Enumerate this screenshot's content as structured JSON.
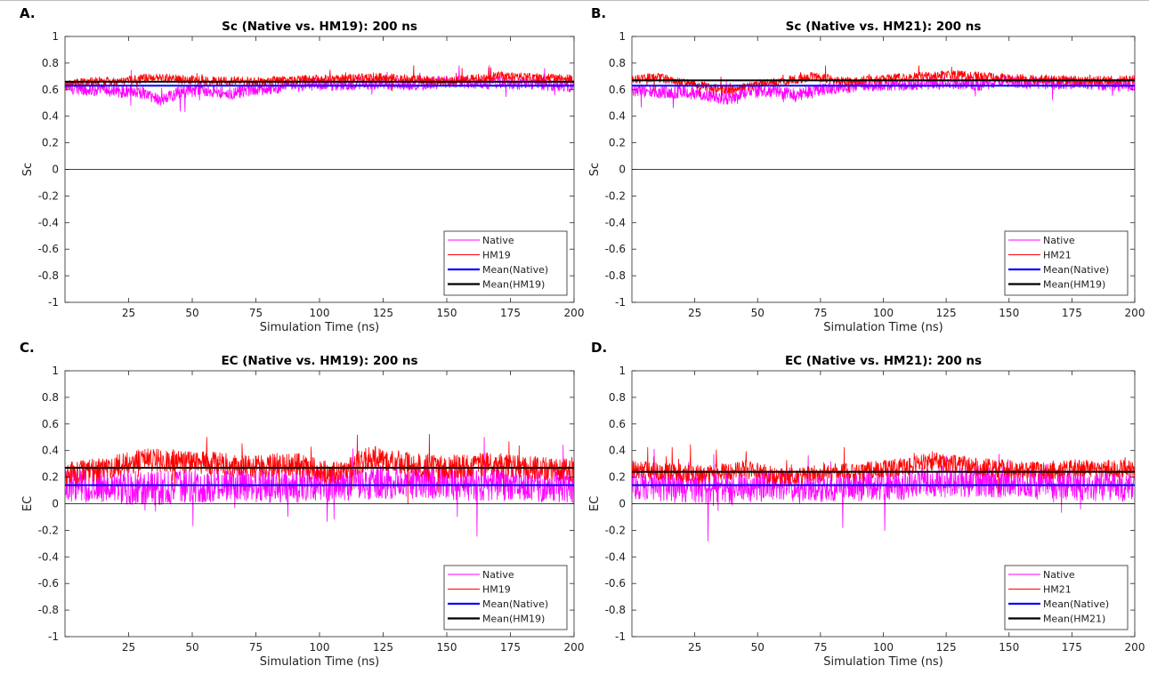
{
  "chart_data": [
    {
      "panel": "A.",
      "type": "line",
      "title": "Sc (Native vs. HM19): 200 ns",
      "xlabel": "Simulation Time (ns)",
      "ylabel": "Sc",
      "xlim": [
        0,
        200
      ],
      "ylim": [
        -1,
        1
      ],
      "xticks": [
        25,
        50,
        75,
        100,
        125,
        150,
        175,
        200
      ],
      "yticks": [
        -1,
        -0.8,
        -0.6,
        -0.4,
        -0.2,
        0,
        0.2,
        0.4,
        0.6,
        0.8,
        1
      ],
      "grid": false,
      "legend_position": "bottom-right",
      "zero_line": true,
      "series": [
        {
          "name": "Native",
          "color": "#ff00ff",
          "kind": "trace",
          "points": [
            [
              0,
              0.62
            ],
            [
              10,
              0.6
            ],
            [
              20,
              0.59
            ],
            [
              30,
              0.58
            ],
            [
              38,
              0.52
            ],
            [
              45,
              0.58
            ],
            [
              55,
              0.6
            ],
            [
              65,
              0.57
            ],
            [
              75,
              0.6
            ],
            [
              90,
              0.63
            ],
            [
              100,
              0.64
            ],
            [
              110,
              0.64
            ],
            [
              125,
              0.65
            ],
            [
              140,
              0.64
            ],
            [
              150,
              0.66
            ],
            [
              160,
              0.65
            ],
            [
              175,
              0.65
            ],
            [
              190,
              0.64
            ],
            [
              200,
              0.63
            ]
          ],
          "spread": 0.05
        },
        {
          "name": "HM19",
          "color": "#ff0000",
          "kind": "trace",
          "points": [
            [
              0,
              0.64
            ],
            [
              10,
              0.66
            ],
            [
              20,
              0.66
            ],
            [
              35,
              0.69
            ],
            [
              50,
              0.67
            ],
            [
              75,
              0.66
            ],
            [
              100,
              0.68
            ],
            [
              125,
              0.69
            ],
            [
              150,
              0.66
            ],
            [
              170,
              0.7
            ],
            [
              185,
              0.69
            ],
            [
              200,
              0.68
            ]
          ],
          "spread": 0.035
        },
        {
          "name": "Mean(Native)",
          "color": "#0000ff",
          "kind": "mean",
          "value": 0.63
        },
        {
          "name": "Mean(HM19)",
          "color": "#000000",
          "kind": "mean",
          "value": 0.66
        }
      ]
    },
    {
      "panel": "B.",
      "type": "line",
      "title": "Sc (Native vs. HM21): 200 ns",
      "xlabel": "Simulation Time (ns)",
      "ylabel": "Sc",
      "xlim": [
        0,
        200
      ],
      "ylim": [
        -1,
        1
      ],
      "xticks": [
        25,
        50,
        75,
        100,
        125,
        150,
        175,
        200
      ],
      "yticks": [
        -1,
        -0.8,
        -0.6,
        -0.4,
        -0.2,
        0,
        0.2,
        0.4,
        0.6,
        0.8,
        1
      ],
      "grid": false,
      "legend_position": "bottom-right",
      "zero_line": true,
      "series": [
        {
          "name": "Native",
          "color": "#ff00ff",
          "kind": "trace",
          "points": [
            [
              0,
              0.6
            ],
            [
              10,
              0.58
            ],
            [
              20,
              0.58
            ],
            [
              30,
              0.56
            ],
            [
              38,
              0.53
            ],
            [
              45,
              0.58
            ],
            [
              55,
              0.59
            ],
            [
              65,
              0.56
            ],
            [
              75,
              0.6
            ],
            [
              90,
              0.63
            ],
            [
              100,
              0.64
            ],
            [
              110,
              0.64
            ],
            [
              125,
              0.65
            ],
            [
              140,
              0.64
            ],
            [
              150,
              0.66
            ],
            [
              160,
              0.65
            ],
            [
              175,
              0.65
            ],
            [
              190,
              0.64
            ],
            [
              200,
              0.63
            ]
          ],
          "spread": 0.05
        },
        {
          "name": "HM21",
          "color": "#ff0000",
          "kind": "trace",
          "points": [
            [
              0,
              0.68
            ],
            [
              10,
              0.69
            ],
            [
              20,
              0.66
            ],
            [
              30,
              0.62
            ],
            [
              40,
              0.6
            ],
            [
              50,
              0.64
            ],
            [
              60,
              0.66
            ],
            [
              72,
              0.7
            ],
            [
              85,
              0.66
            ],
            [
              100,
              0.68
            ],
            [
              115,
              0.7
            ],
            [
              130,
              0.71
            ],
            [
              145,
              0.69
            ],
            [
              160,
              0.68
            ],
            [
              180,
              0.67
            ],
            [
              200,
              0.67
            ]
          ],
          "spread": 0.035
        },
        {
          "name": "Mean(Native)",
          "color": "#0000ff",
          "kind": "mean",
          "value": 0.63
        },
        {
          "name": "Mean(HM19)",
          "color": "#000000",
          "kind": "mean",
          "value": 0.67
        }
      ]
    },
    {
      "panel": "C.",
      "type": "line",
      "title": "EC (Native vs. HM19): 200 ns",
      "xlabel": "Simulation Time (ns)",
      "ylabel": "EC",
      "xlim": [
        0,
        200
      ],
      "ylim": [
        -1,
        1
      ],
      "xticks": [
        25,
        50,
        75,
        100,
        125,
        150,
        175,
        200
      ],
      "yticks": [
        -1,
        -0.8,
        -0.6,
        -0.4,
        -0.2,
        0,
        0.2,
        0.4,
        0.6,
        0.8,
        1
      ],
      "grid": false,
      "legend_position": "bottom-right",
      "zero_line": true,
      "series": [
        {
          "name": "Native",
          "color": "#ff00ff",
          "kind": "trace",
          "points": [
            [
              0,
              0.15
            ],
            [
              20,
              0.12
            ],
            [
              40,
              0.12
            ],
            [
              60,
              0.14
            ],
            [
              80,
              0.13
            ],
            [
              100,
              0.14
            ],
            [
              120,
              0.16
            ],
            [
              140,
              0.17
            ],
            [
              160,
              0.15
            ],
            [
              180,
              0.14
            ],
            [
              200,
              0.13
            ]
          ],
          "spread": 0.13
        },
        {
          "name": "HM19",
          "color": "#ff0000",
          "kind": "trace",
          "points": [
            [
              0,
              0.22
            ],
            [
              15,
              0.26
            ],
            [
              30,
              0.33
            ],
            [
              45,
              0.32
            ],
            [
              60,
              0.3
            ],
            [
              75,
              0.28
            ],
            [
              90,
              0.3
            ],
            [
              105,
              0.22
            ],
            [
              120,
              0.35
            ],
            [
              135,
              0.3
            ],
            [
              150,
              0.27
            ],
            [
              165,
              0.3
            ],
            [
              180,
              0.28
            ],
            [
              200,
              0.25
            ]
          ],
          "spread": 0.09
        },
        {
          "name": "Mean(Native)",
          "color": "#0000ff",
          "kind": "mean",
          "value": 0.14
        },
        {
          "name": "Mean(HM19)",
          "color": "#000000",
          "kind": "mean",
          "value": 0.27
        }
      ]
    },
    {
      "panel": "D.",
      "type": "line",
      "title": "EC (Native vs. HM21): 200 ns",
      "xlabel": "Simulation Time (ns)",
      "ylabel": "EC",
      "xlim": [
        0,
        200
      ],
      "ylim": [
        -1,
        1
      ],
      "xticks": [
        25,
        50,
        75,
        100,
        125,
        150,
        175,
        200
      ],
      "yticks": [
        -1,
        -0.8,
        -0.6,
        -0.4,
        -0.2,
        0,
        0.2,
        0.4,
        0.6,
        0.8,
        1
      ],
      "grid": false,
      "legend_position": "bottom-right",
      "zero_line": true,
      "series": [
        {
          "name": "Native",
          "color": "#ff00ff",
          "kind": "trace",
          "points": [
            [
              0,
              0.15
            ],
            [
              20,
              0.12
            ],
            [
              40,
              0.12
            ],
            [
              60,
              0.14
            ],
            [
              80,
              0.13
            ],
            [
              100,
              0.14
            ],
            [
              120,
              0.16
            ],
            [
              140,
              0.17
            ],
            [
              160,
              0.15
            ],
            [
              180,
              0.14
            ],
            [
              200,
              0.13
            ]
          ],
          "spread": 0.12
        },
        {
          "name": "HM21",
          "color": "#ff0000",
          "kind": "trace",
          "points": [
            [
              0,
              0.26
            ],
            [
              15,
              0.24
            ],
            [
              30,
              0.22
            ],
            [
              45,
              0.26
            ],
            [
              60,
              0.2
            ],
            [
              75,
              0.23
            ],
            [
              90,
              0.24
            ],
            [
              105,
              0.27
            ],
            [
              120,
              0.32
            ],
            [
              135,
              0.28
            ],
            [
              150,
              0.26
            ],
            [
              165,
              0.25
            ],
            [
              180,
              0.27
            ],
            [
              200,
              0.26
            ]
          ],
          "spread": 0.07
        },
        {
          "name": "Mean(Native)",
          "color": "#0000ff",
          "kind": "mean",
          "value": 0.14
        },
        {
          "name": "Mean(HM21)",
          "color": "#000000",
          "kind": "mean",
          "value": 0.24
        }
      ]
    }
  ]
}
